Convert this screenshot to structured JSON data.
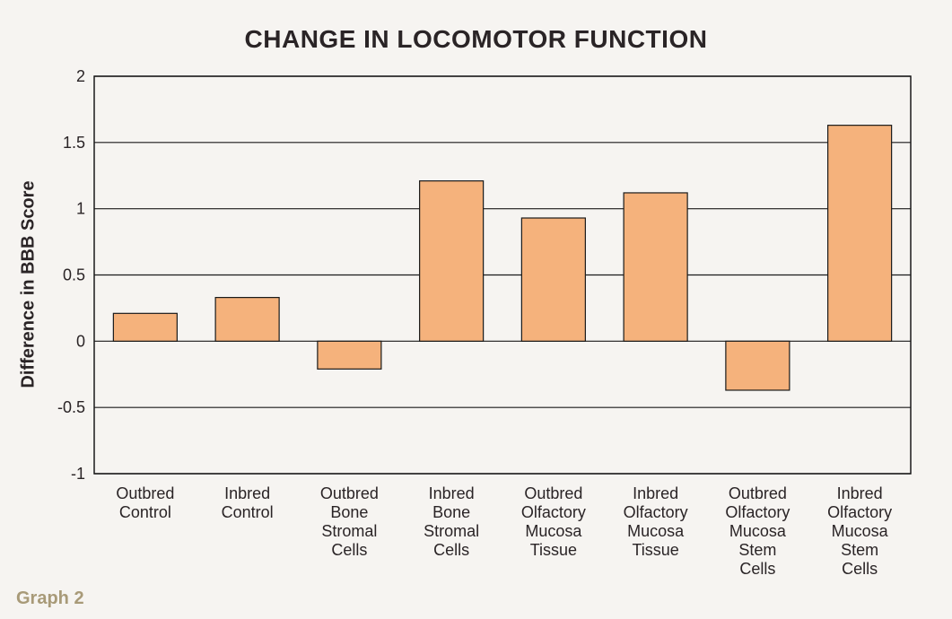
{
  "chart_data": {
    "type": "bar",
    "title": "CHANGE IN LOCOMOTOR FUNCTION",
    "xlabel": "",
    "ylabel": "Difference in BBB Score",
    "ylim": [
      -1,
      2
    ],
    "yticks": [
      "2",
      "1.5",
      "1",
      "0.5",
      "0",
      "-0.5",
      "-1"
    ],
    "ytick_values": [
      2,
      1.5,
      1,
      0.5,
      0,
      -0.5,
      -1
    ],
    "grid": true,
    "categories": [
      [
        "Outbred",
        "Control"
      ],
      [
        "Inbred",
        "Control"
      ],
      [
        "Outbred",
        "Bone",
        "Stromal",
        "Cells"
      ],
      [
        "Inbred",
        "Bone",
        "Stromal",
        "Cells"
      ],
      [
        "Outbred",
        "Olfactory",
        "Mucosa",
        "Tissue"
      ],
      [
        "Inbred",
        "Olfactory",
        "Mucosa",
        "Tissue"
      ],
      [
        "Outbred",
        "Olfactory",
        "Mucosa",
        "Stem",
        "Cells"
      ],
      [
        "Inbred",
        "Olfactory",
        "Mucosa",
        "Stem",
        "Cells"
      ]
    ],
    "values": [
      0.21,
      0.33,
      -0.21,
      1.21,
      0.93,
      1.12,
      -0.37,
      1.63
    ],
    "bar_color": "#f5b27c",
    "bar_stroke": "#1a1a1a"
  },
  "caption": "Graph 2"
}
